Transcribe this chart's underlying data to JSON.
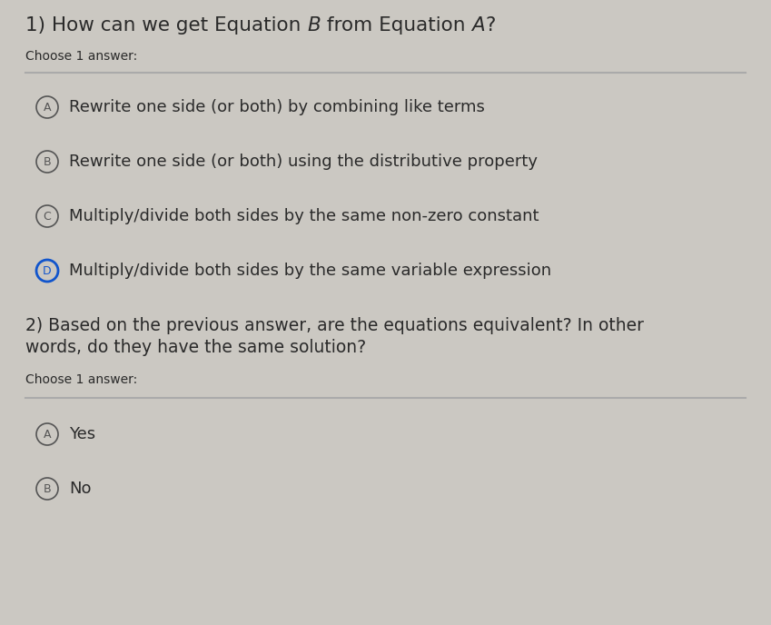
{
  "bg_color": "#cbc8c2",
  "text_color": "#2a2a2a",
  "circle_color_normal": "#555555",
  "circle_color_selected": "#1155cc",
  "line_color": "#aaaaaa",
  "title_normal": "1) How can we get Equation ",
  "title_B": "B",
  "title_mid": " from Equation ",
  "title_A": "A",
  "title_end": "?",
  "choose_label": "Choose 1 answer:",
  "q1_options": [
    {
      "label": "A",
      "text": "Rewrite one side (or both) by combining like terms",
      "selected": false
    },
    {
      "label": "B",
      "text": "Rewrite one side (or both) using the distributive property",
      "selected": false
    },
    {
      "label": "C",
      "text": "Multiply/divide both sides by the same non-zero constant",
      "selected": false
    },
    {
      "label": "D",
      "text": "Multiply/divide both sides by the same variable expression",
      "selected": true
    }
  ],
  "q2_line1": "2) Based on the previous answer, are the equations equivalent? In other",
  "q2_line2": "words, do they have the same solution?",
  "choose_label2": "Choose 1 answer:",
  "q2_options": [
    {
      "label": "A",
      "text": "Yes",
      "selected": false
    },
    {
      "label": "B",
      "text": "No",
      "selected": false
    }
  ],
  "font_size_title": 15.5,
  "font_size_choose": 10,
  "font_size_option": 13,
  "font_size_q2": 13.5,
  "fig_width": 8.49,
  "fig_height": 6.88,
  "dpi": 100
}
